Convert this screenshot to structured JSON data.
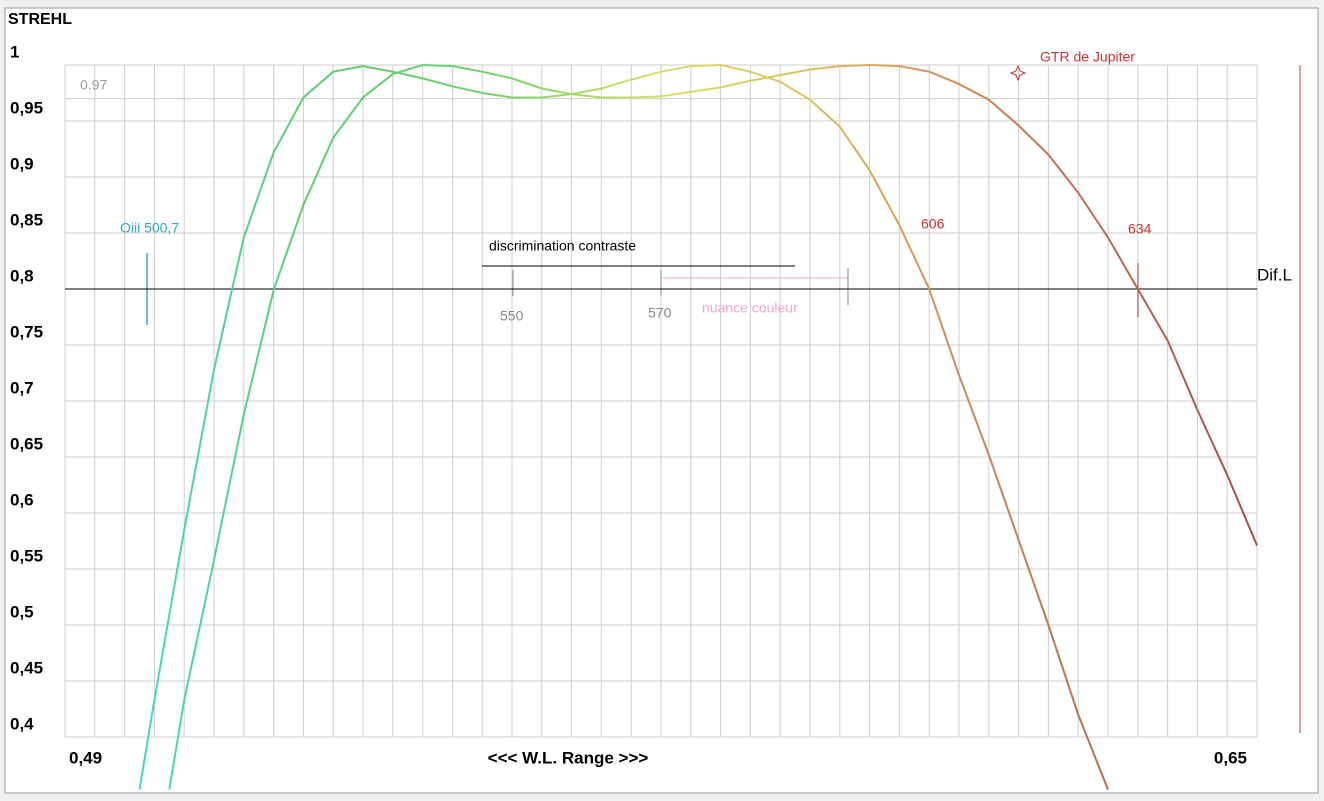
{
  "chart_data": {
    "type": "line",
    "y_title": "STREHL",
    "x_title": "<<<  W.L. Range  >>>",
    "xlim": [
      0.49,
      0.65
    ],
    "xticks": [
      {
        "value": 0.49,
        "label": "0,49"
      },
      {
        "value": 0.65,
        "label": "0,65"
      }
    ],
    "xgrid": [
      0.49,
      0.494,
      0.498,
      0.502,
      0.506,
      0.51,
      0.514,
      0.518,
      0.522,
      0.526,
      0.53,
      0.534,
      0.538,
      0.542,
      0.546,
      0.55,
      0.554,
      0.558,
      0.562,
      0.566,
      0.57,
      0.574,
      0.578,
      0.582,
      0.586,
      0.59,
      0.594,
      0.598,
      0.602,
      0.606,
      0.61,
      0.614,
      0.618,
      0.622,
      0.626,
      0.63,
      0.634,
      0.638,
      0.642,
      0.646,
      0.65
    ],
    "ylim": [
      0.4,
      1
    ],
    "yticks": [
      {
        "value": 0.4,
        "label": "0,4"
      },
      {
        "value": 0.45,
        "label": "0,45"
      },
      {
        "value": 0.5,
        "label": "0,5"
      },
      {
        "value": 0.55,
        "label": "0,55"
      },
      {
        "value": 0.6,
        "label": "0,6"
      },
      {
        "value": 0.65,
        "label": "0,65"
      },
      {
        "value": 0.7,
        "label": "0,7"
      },
      {
        "value": 0.75,
        "label": "0,75"
      },
      {
        "value": 0.8,
        "label": "0,8"
      },
      {
        "value": 0.85,
        "label": "0,85"
      },
      {
        "value": 0.9,
        "label": "0,9"
      },
      {
        "value": 0.95,
        "label": "0,95"
      },
      1
    ],
    "ref_line": 0.97,
    "dif_line": {
      "value": 0.8,
      "label": "Dif.L"
    },
    "grid": true,
    "series": [
      {
        "x": [
          0.5,
          0.502,
          0.506,
          0.51,
          0.514,
          0.518,
          0.522,
          0.526,
          0.53,
          0.534,
          0.538,
          0.542,
          0.546,
          0.55,
          0.554,
          0.558,
          0.562,
          0.566,
          0.57,
          0.574,
          0.578,
          0.582,
          0.586,
          0.59,
          0.594,
          0.598,
          0.602,
          0.606,
          0.61,
          0.614,
          0.618,
          0.622,
          0.626,
          0.63
        ],
        "values": [
          0.353,
          0.433,
          0.585,
          0.728,
          0.846,
          0.922,
          0.971,
          0.994,
          0.999,
          0.994,
          0.988,
          0.981,
          0.975,
          0.971,
          0.971,
          0.974,
          0.979,
          0.987,
          0.994,
          0.999,
          1.0,
          0.994,
          0.985,
          0.969,
          0.945,
          0.906,
          0.857,
          0.8,
          0.723,
          0.652,
          0.576,
          0.5,
          0.42,
          0.353
        ]
      },
      {
        "x": [
          0.504,
          0.506,
          0.51,
          0.514,
          0.518,
          0.522,
          0.526,
          0.53,
          0.534,
          0.538,
          0.542,
          0.546,
          0.55,
          0.554,
          0.558,
          0.562,
          0.566,
          0.57,
          0.574,
          0.578,
          0.582,
          0.586,
          0.59,
          0.594,
          0.598,
          0.602,
          0.606,
          0.61,
          0.614,
          0.618,
          0.622,
          0.626,
          0.63,
          0.634,
          0.638,
          0.642,
          0.646,
          0.65
        ],
        "values": [
          0.353,
          0.433,
          0.558,
          0.688,
          0.799,
          0.875,
          0.935,
          0.971,
          0.992,
          1.0,
          0.999,
          0.994,
          0.988,
          0.979,
          0.974,
          0.971,
          0.971,
          0.972,
          0.976,
          0.98,
          0.986,
          0.991,
          0.996,
          0.999,
          1.0,
          0.999,
          0.994,
          0.983,
          0.969,
          0.946,
          0.92,
          0.886,
          0.846,
          0.8,
          0.754,
          0.692,
          0.634,
          0.571
        ]
      }
    ],
    "annotations": {
      "oiii": "Oiii 500,7",
      "contrast": "discrimination contraste",
      "m550": 550,
      "m570": 570,
      "nuance": "nuance couleur",
      "m606": 606,
      "m634": 634,
      "gtr": "GTR de Jupiter"
    }
  }
}
